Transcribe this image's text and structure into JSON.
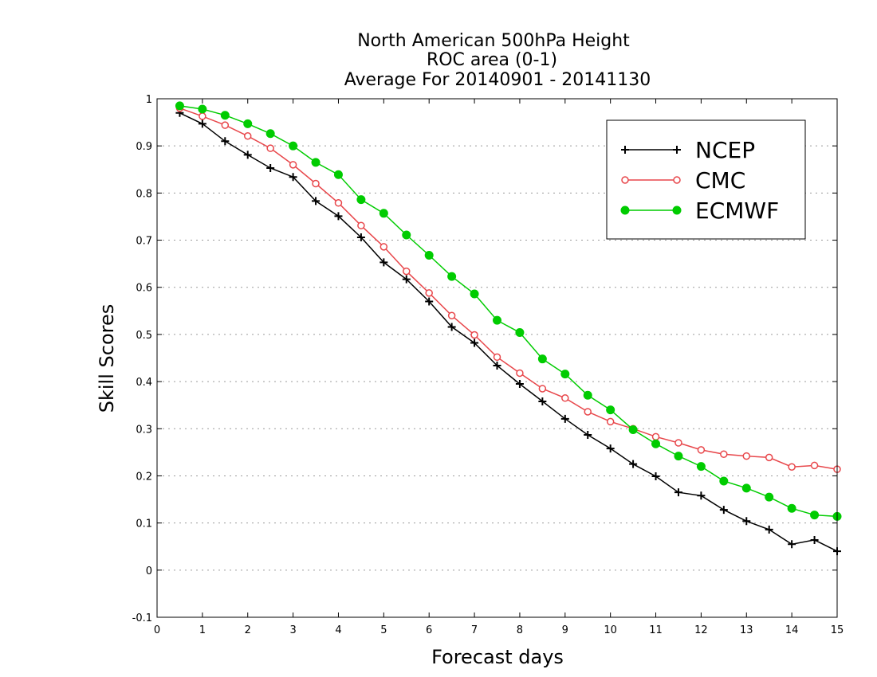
{
  "chart_data": {
    "type": "line",
    "title": [
      "North American 500hPa Height",
      "ROC area (0-1)",
      "Average For 20140901 - 20141130"
    ],
    "xlabel": "Forecast days",
    "ylabel": "Skill Scores",
    "xlim": [
      0,
      15
    ],
    "ylim": [
      -0.1,
      1
    ],
    "x_ticks": [
      0,
      1,
      2,
      3,
      4,
      5,
      6,
      7,
      8,
      9,
      10,
      11,
      12,
      13,
      14,
      15
    ],
    "x_tick_labels": [
      "0",
      "1",
      "2",
      "3",
      "4",
      "5",
      "6",
      "7",
      "8",
      "9",
      "10",
      "11",
      "12",
      "13",
      "14",
      "15"
    ],
    "y_ticks": [
      -0.1,
      0,
      0.1,
      0.2,
      0.3,
      0.4,
      0.5,
      0.6,
      0.7,
      0.8,
      0.9,
      1
    ],
    "y_tick_labels": [
      "-0.1",
      "0",
      "0.1",
      "0.2",
      "0.3",
      "0.4",
      "0.5",
      "0.6",
      "0.7",
      "0.8",
      "0.9",
      "1"
    ],
    "grid": "horizontal dotted",
    "legend_position": "top-right",
    "x": [
      0.5,
      1,
      1.5,
      2,
      2.5,
      3,
      3.5,
      4,
      4.5,
      5,
      5.5,
      6,
      6.5,
      7,
      7.5,
      8,
      8.5,
      9,
      9.5,
      10,
      10.5,
      11,
      11.5,
      12,
      12.5,
      13,
      13.5,
      14,
      14.5,
      15
    ],
    "series": [
      {
        "name": "NCEP",
        "color": "#000000",
        "marker": "plus",
        "values": [
          0.97,
          0.947,
          0.91,
          0.881,
          0.853,
          0.834,
          0.783,
          0.751,
          0.706,
          0.653,
          0.617,
          0.57,
          0.516,
          0.482,
          0.434,
          0.395,
          0.358,
          0.321,
          0.287,
          0.258,
          0.225,
          0.199,
          0.165,
          0.158,
          0.128,
          0.104,
          0.086,
          0.055,
          0.064,
          0.04
        ]
      },
      {
        "name": "CMC",
        "color": "#e8474b",
        "marker": "open-circle",
        "values": [
          0.98,
          0.963,
          0.944,
          0.921,
          0.895,
          0.86,
          0.82,
          0.779,
          0.731,
          0.686,
          0.634,
          0.588,
          0.54,
          0.499,
          0.452,
          0.418,
          0.385,
          0.365,
          0.336,
          0.315,
          0.3,
          0.283,
          0.27,
          0.255,
          0.246,
          0.242,
          0.239,
          0.219,
          0.222,
          0.214
        ]
      },
      {
        "name": "ECMWF",
        "color": "#00cc00",
        "marker": "filled-circle",
        "values": [
          0.985,
          0.978,
          0.965,
          0.947,
          0.926,
          0.9,
          0.865,
          0.839,
          0.786,
          0.757,
          0.711,
          0.668,
          0.623,
          0.586,
          0.53,
          0.504,
          0.448,
          0.416,
          0.371,
          0.34,
          0.298,
          0.268,
          0.242,
          0.22,
          0.189,
          0.174,
          0.155,
          0.131,
          0.117,
          0.114
        ]
      }
    ]
  }
}
